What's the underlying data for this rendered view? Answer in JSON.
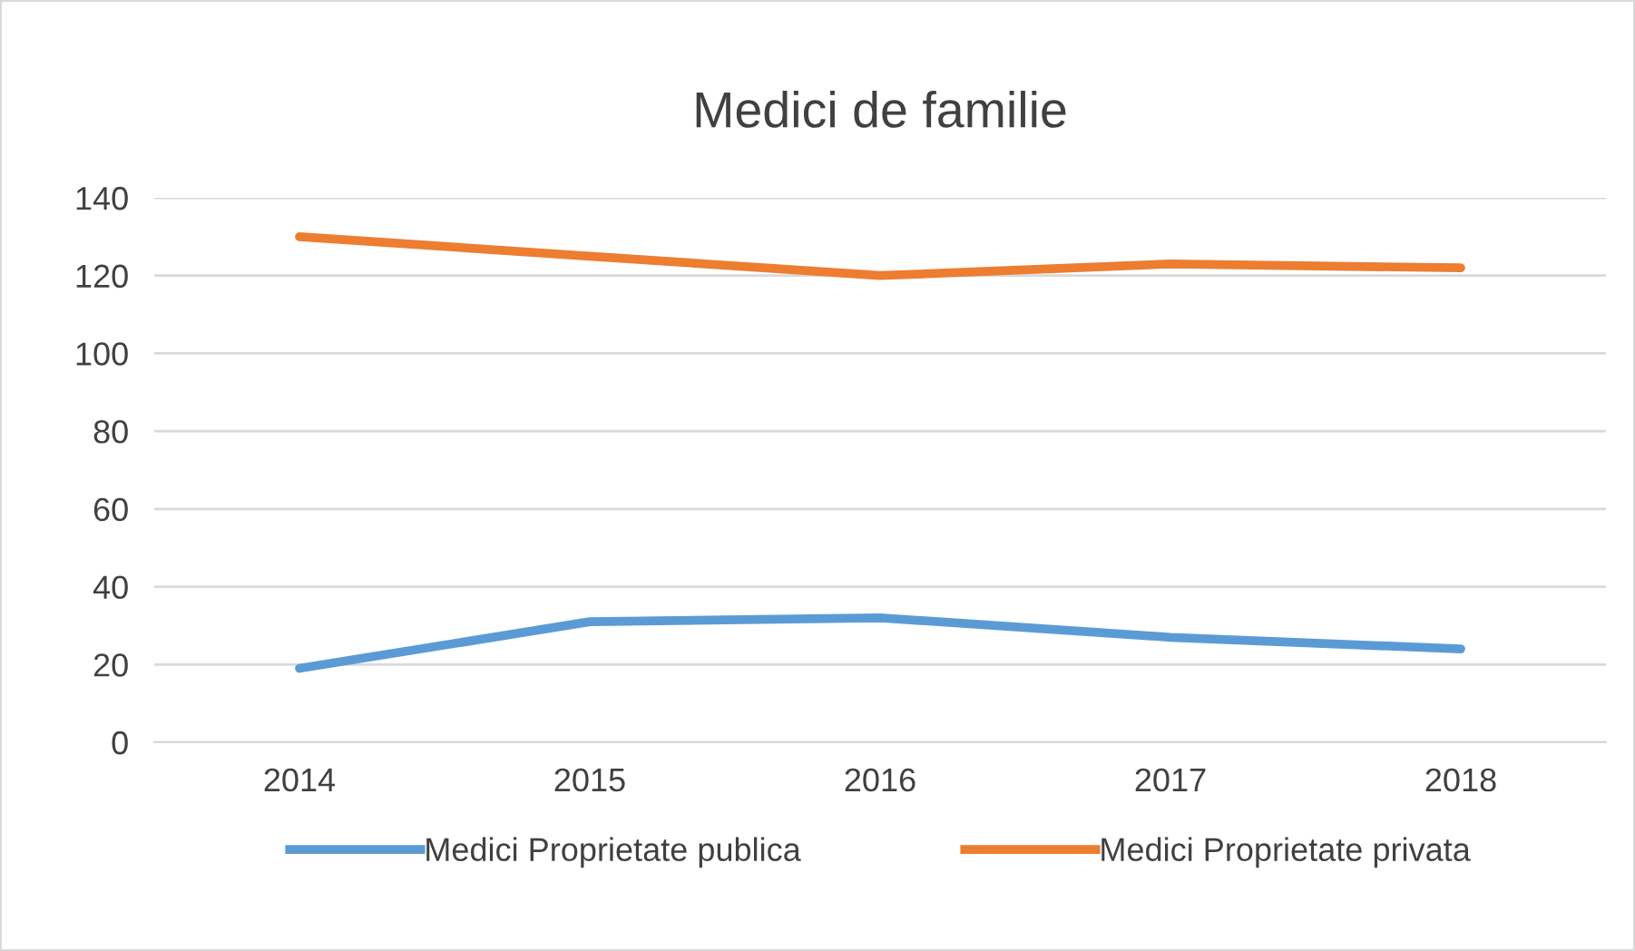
{
  "chart_data": {
    "type": "line",
    "title": "Medici de familie",
    "categories": [
      "2014",
      "2015",
      "2016",
      "2017",
      "2018"
    ],
    "series": [
      {
        "name": "Medici Proprietate publica",
        "color": "#5b9bd5",
        "values": [
          19,
          31,
          32,
          27,
          24
        ]
      },
      {
        "name": "Medici Proprietate privata",
        "color": "#ed7d31",
        "values": [
          130,
          125,
          120,
          123,
          122
        ]
      }
    ],
    "ylim": [
      0,
      140
    ],
    "yticks": [
      0,
      20,
      40,
      60,
      80,
      100,
      120,
      140
    ],
    "grid": "y",
    "legend": "bottom",
    "marker": "none",
    "line_style": "solid"
  }
}
